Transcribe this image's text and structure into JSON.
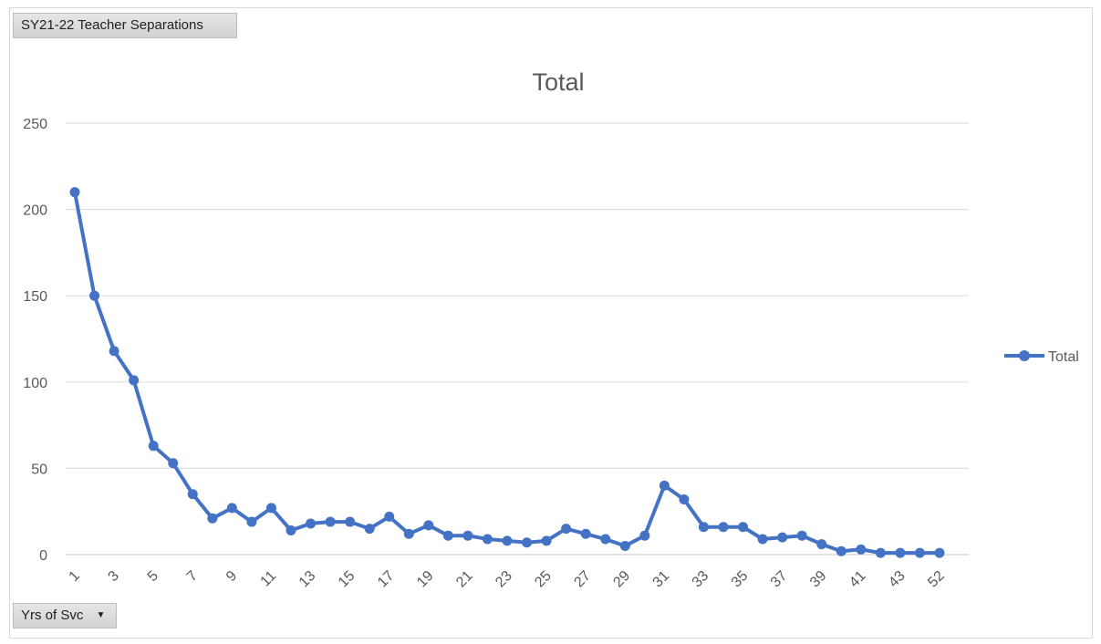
{
  "pivot": {
    "report_filter_label": "SY21-22 Teacher Separations",
    "axis_field_label": "Yrs of Svc"
  },
  "chart_data": {
    "type": "line",
    "title": "Total",
    "xlabel": "",
    "ylabel": "",
    "ylim": [
      0,
      250
    ],
    "y_ticks": [
      0,
      50,
      100,
      150,
      200,
      250
    ],
    "grid": true,
    "legend_position": "right",
    "color": "#4472C4",
    "categories": [
      "1",
      "2",
      "3",
      "4",
      "5",
      "6",
      "7",
      "8",
      "9",
      "10",
      "11",
      "12",
      "13",
      "14",
      "15",
      "16",
      "17",
      "18",
      "19",
      "20",
      "21",
      "22",
      "23",
      "24",
      "25",
      "26",
      "27",
      "28",
      "29",
      "30",
      "31",
      "32",
      "33",
      "34",
      "35",
      "36",
      "37",
      "38",
      "39",
      "40",
      "41",
      "42",
      "43",
      "44",
      "52"
    ],
    "x_tick_labels_shown": [
      "1",
      "3",
      "5",
      "7",
      "9",
      "11",
      "13",
      "15",
      "17",
      "19",
      "21",
      "23",
      "25",
      "27",
      "29",
      "31",
      "33",
      "35",
      "37",
      "39",
      "41",
      "43",
      "52"
    ],
    "series": [
      {
        "name": "Total",
        "values": [
          210,
          150,
          118,
          101,
          63,
          53,
          35,
          21,
          27,
          19,
          27,
          14,
          18,
          19,
          19,
          15,
          22,
          12,
          17,
          11,
          11,
          9,
          8,
          7,
          8,
          15,
          12,
          9,
          5,
          11,
          40,
          32,
          16,
          16,
          16,
          9,
          10,
          11,
          6,
          2,
          3,
          1,
          1,
          1,
          1
        ]
      }
    ]
  }
}
